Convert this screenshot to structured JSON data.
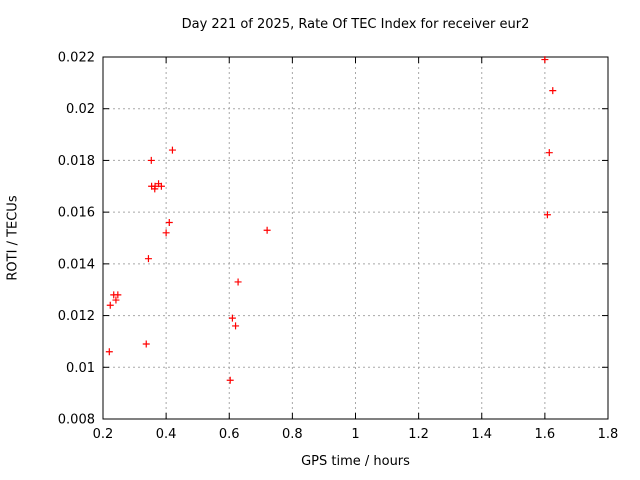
{
  "chart_data": {
    "type": "scatter",
    "title": "Day 221 of 2025, Rate Of TEC Index for receiver eur2",
    "xlabel": "GPS time / hours",
    "ylabel": "ROTI / TECUs",
    "xlim": [
      0.2,
      1.8
    ],
    "ylim": [
      0.008,
      0.022
    ],
    "xticks": {
      "values": [
        0.2,
        0.4,
        0.6,
        0.8,
        1.0,
        1.2,
        1.4,
        1.6,
        1.8
      ],
      "labels": [
        "0.2",
        "0.4",
        "0.6",
        "0.8",
        "1",
        "1.2",
        "1.4",
        "1.6",
        "1.8"
      ]
    },
    "yticks": {
      "values": [
        0.008,
        0.01,
        0.012,
        0.014,
        0.016,
        0.018,
        0.02,
        0.022
      ],
      "labels": [
        "0.008",
        "0.01",
        "0.012",
        "0.014",
        "0.016",
        "0.018",
        "0.02",
        "0.022"
      ]
    },
    "grid": true,
    "legend": "none",
    "marker": {
      "shape": "plus",
      "color": "#ff0000",
      "size": 7
    },
    "colors": {
      "frame": "#000000",
      "grid": "#a8a8a8",
      "background": "#ffffff",
      "text": "#000000"
    },
    "points": [
      [
        0.22,
        0.0106
      ],
      [
        0.223,
        0.0124
      ],
      [
        0.234,
        0.0128
      ],
      [
        0.241,
        0.0126
      ],
      [
        0.247,
        0.0128
      ],
      [
        0.337,
        0.0109
      ],
      [
        0.344,
        0.0142
      ],
      [
        0.353,
        0.018
      ],
      [
        0.354,
        0.017
      ],
      [
        0.364,
        0.0169
      ],
      [
        0.365,
        0.017
      ],
      [
        0.376,
        0.0171
      ],
      [
        0.385,
        0.017
      ],
      [
        0.4,
        0.0152
      ],
      [
        0.41,
        0.0156
      ],
      [
        0.42,
        0.0184
      ],
      [
        0.603,
        0.0095
      ],
      [
        0.61,
        0.0119
      ],
      [
        0.62,
        0.0116
      ],
      [
        0.628,
        0.0133
      ],
      [
        0.72,
        0.0153
      ],
      [
        1.6,
        0.0219
      ],
      [
        1.608,
        0.0159
      ],
      [
        1.614,
        0.0183
      ],
      [
        1.625,
        0.0207
      ]
    ]
  }
}
